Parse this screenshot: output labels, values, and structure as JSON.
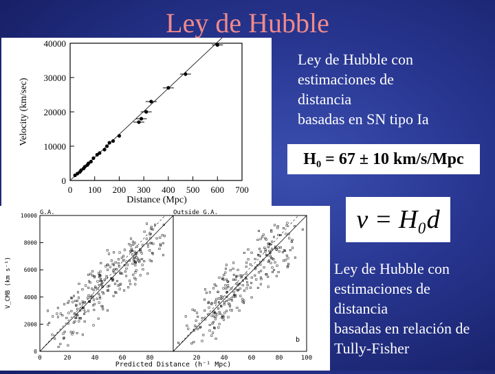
{
  "title": "Ley de Hubble",
  "text_sn": [
    "Ley de Hubble con",
    "estimaciones de",
    "distancia",
    "basadas en SN tipo Ia"
  ],
  "h0_value": "H₀ = 67 ± 10 km/s/Mpc",
  "equation": "v = H₀d",
  "text_tf": [
    "Ley de Hubble con",
    "estimaciones de",
    "distancia",
    "basadas en relación de",
    "Tully-Fisher"
  ],
  "plot_sn": {
    "ylabel": "Velocity (km/sec)",
    "xlabel": "Distance (Mpc)",
    "yticks": [
      "0",
      "10000",
      "20000",
      "30000",
      "40000"
    ],
    "xticks": [
      "0",
      "100",
      "200",
      "300",
      "400",
      "500",
      "600",
      "700"
    ]
  },
  "plot_tf": {
    "left_label": "G.A.",
    "right_label": "Outside G.A.",
    "panel_letter": "b",
    "ylabel": "V_CMB (km s⁻¹)",
    "xlabel": "Predicted Distance (h⁻¹ Mpc)",
    "yticks": [
      "0",
      "2000",
      "4000",
      "6000",
      "8000",
      "10000"
    ],
    "xticks_left": [
      "0",
      "20",
      "40",
      "60",
      "80"
    ],
    "xticks_right": [
      "20",
      "40",
      "60",
      "80",
      "100"
    ]
  },
  "chart_data": [
    {
      "type": "scatter",
      "title": "",
      "xlabel": "Distance (Mpc)",
      "ylabel": "Velocity (km/sec)",
      "xlim": [
        0,
        700
      ],
      "ylim": [
        0,
        40000
      ],
      "x": [
        20,
        30,
        40,
        45,
        55,
        60,
        70,
        75,
        85,
        95,
        110,
        120,
        140,
        150,
        160,
        175,
        200,
        280,
        290,
        310,
        330,
        400,
        470,
        600
      ],
      "y": [
        1500,
        2000,
        2500,
        3000,
        3500,
        4000,
        4500,
        5000,
        5500,
        6500,
        7500,
        8000,
        9000,
        10000,
        11000,
        11500,
        13000,
        17000,
        18000,
        20000,
        23000,
        27000,
        31000,
        39500
      ]
    }
  ]
}
